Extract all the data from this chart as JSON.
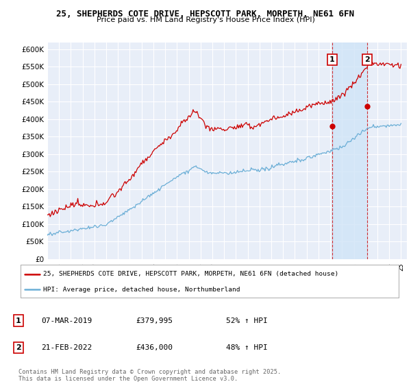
{
  "title1": "25, SHEPHERDS COTE DRIVE, HEPSCOTT PARK, MORPETH, NE61 6FN",
  "title2": "Price paid vs. HM Land Registry's House Price Index (HPI)",
  "ylim": [
    0,
    620000
  ],
  "yticks": [
    0,
    50000,
    100000,
    150000,
    200000,
    250000,
    300000,
    350000,
    400000,
    450000,
    500000,
    550000,
    600000
  ],
  "xlim_start": 1995.0,
  "xlim_end": 2025.5,
  "bg_color": "#e8eef8",
  "grid_color": "#ffffff",
  "red_color": "#cc0000",
  "blue_color": "#6aaed6",
  "shade_color": "#d0e4f7",
  "marker1_x": 2019.17,
  "marker1_y": 379995,
  "marker2_x": 2022.13,
  "marker2_y": 436000,
  "legend_line1": "25, SHEPHERDS COTE DRIVE, HEPSCOTT PARK, MORPETH, NE61 6FN (detached house)",
  "legend_line2": "HPI: Average price, detached house, Northumberland",
  "table_row1": [
    "1",
    "07-MAR-2019",
    "£379,995",
    "52% ↑ HPI"
  ],
  "table_row2": [
    "2",
    "21-FEB-2022",
    "£436,000",
    "48% ↑ HPI"
  ],
  "footer": "Contains HM Land Registry data © Crown copyright and database right 2025.\nThis data is licensed under the Open Government Licence v3.0.",
  "xtick_labels": [
    "95",
    "96",
    "97",
    "98",
    "99",
    "00",
    "01",
    "02",
    "03",
    "04",
    "05",
    "06",
    "07",
    "08",
    "09",
    "10",
    "11",
    "12",
    "13",
    "14",
    "15",
    "16",
    "17",
    "18",
    "19",
    "20",
    "21",
    "22",
    "23",
    "24",
    "25"
  ],
  "xtick_vals": [
    1995,
    1996,
    1997,
    1998,
    1999,
    2000,
    2001,
    2002,
    2003,
    2004,
    2005,
    2006,
    2007,
    2008,
    2009,
    2010,
    2011,
    2012,
    2013,
    2014,
    2015,
    2016,
    2017,
    2018,
    2019,
    2020,
    2021,
    2022,
    2023,
    2024,
    2025
  ]
}
